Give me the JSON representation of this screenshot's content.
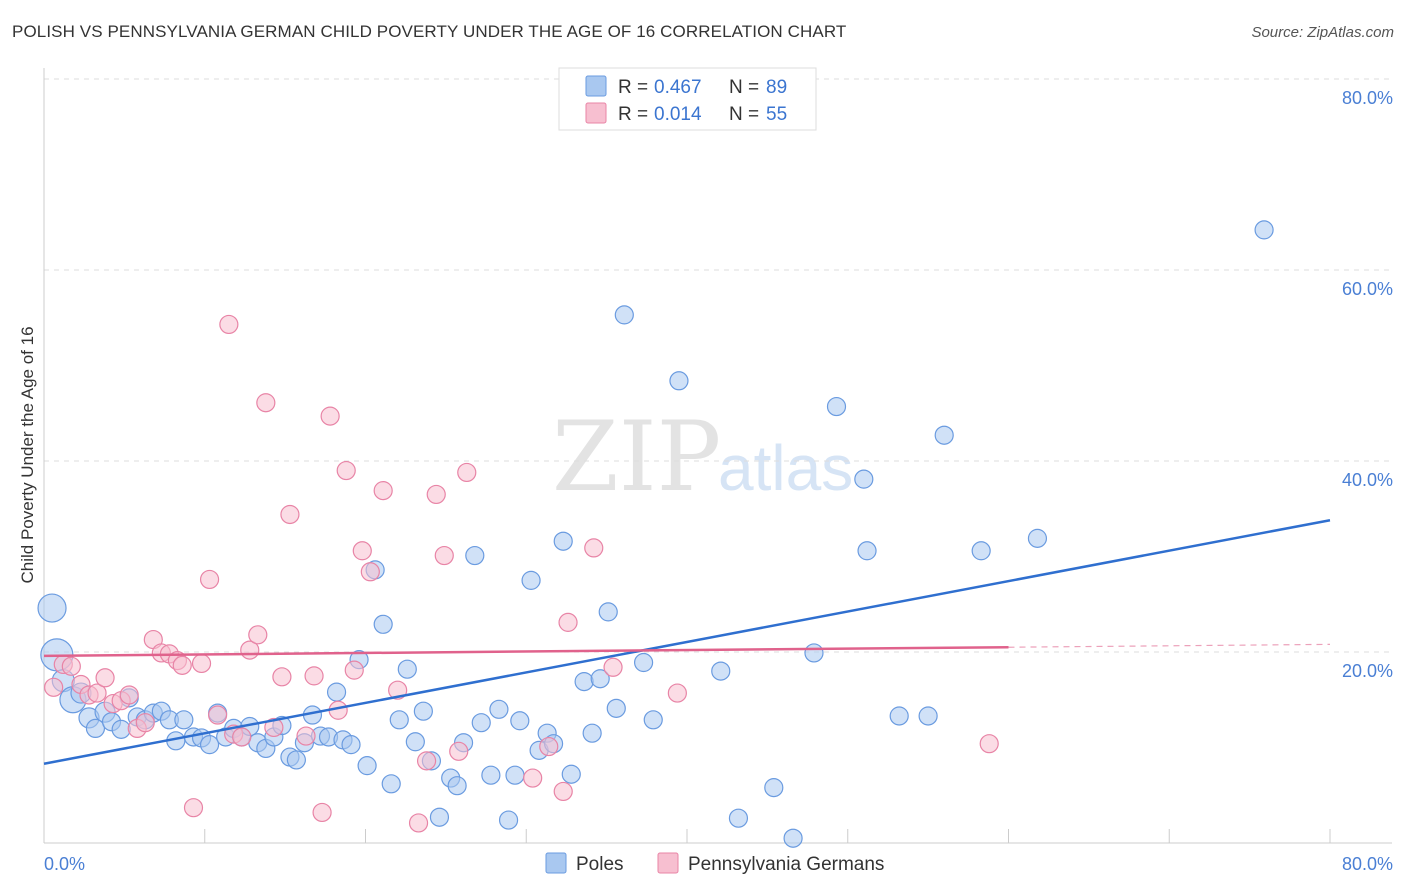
{
  "title": "POLISH VS PENNSYLVANIA GERMAN CHILD POVERTY UNDER THE AGE OF 16 CORRELATION CHART",
  "source": "Source: ZipAtlas.com",
  "watermark": {
    "zip": "ZIP",
    "atlas": "atlas"
  },
  "legend": {
    "items": [
      {
        "r_label": "R =",
        "r_value": "0.467",
        "n_label": "N =",
        "n_value": "89",
        "color": "#a9c8f0",
        "stroke": "#6a9be0"
      },
      {
        "r_label": "R =",
        "r_value": "0.014",
        "n_label": "N =",
        "n_value": "55",
        "color": "#f7bfd0",
        "stroke": "#e884a6"
      }
    ]
  },
  "bottom_legend": [
    "Poles",
    "Pennsylvania Germans"
  ],
  "chart_data": {
    "type": "scatter",
    "ylabel": "Child Poverty Under the Age of 16",
    "x_tick_labels": [
      "0.0%",
      "80.0%"
    ],
    "y_tick_labels": [
      "20.0%",
      "40.0%",
      "60.0%",
      "80.0%"
    ],
    "xlim": [
      0,
      80
    ],
    "ylim": [
      0,
      80
    ],
    "grid": true,
    "series": [
      {
        "name": "Poles",
        "color": "#a9c8f0",
        "stroke": "#6a9be0",
        "line_color": "#2f6fcf",
        "trend": {
          "x": [
            0,
            80
          ],
          "y": [
            8.3,
            33.8
          ]
        },
        "points": [
          [
            0.5,
            24.6,
            1.4
          ],
          [
            0.8,
            19.7,
            1.6
          ],
          [
            1.2,
            17.0,
            1.1
          ],
          [
            1.8,
            15.0,
            1.3
          ],
          [
            2.3,
            15.7,
            1.0
          ],
          [
            2.8,
            13.1,
            1.0
          ],
          [
            3.2,
            12.0,
            0.9
          ],
          [
            3.8,
            13.7,
            1.0
          ],
          [
            4.2,
            12.7,
            0.9
          ],
          [
            4.8,
            11.9,
            0.9
          ],
          [
            5.3,
            15.2,
            0.9
          ],
          [
            5.8,
            13.2,
            0.9
          ],
          [
            6.3,
            12.9,
            0.9
          ],
          [
            6.8,
            13.6,
            0.9
          ],
          [
            7.3,
            13.8,
            0.9
          ],
          [
            7.8,
            12.9,
            0.9
          ],
          [
            8.2,
            10.7,
            0.9
          ],
          [
            8.7,
            12.9,
            0.9
          ],
          [
            9.3,
            11.1,
            0.9
          ],
          [
            9.8,
            11.0,
            0.9
          ],
          [
            10.3,
            10.3,
            0.9
          ],
          [
            10.8,
            13.6,
            0.9
          ],
          [
            11.3,
            11.1,
            0.9
          ],
          [
            11.8,
            12.0,
            0.9
          ],
          [
            12.3,
            11.1,
            0.9
          ],
          [
            12.8,
            12.2,
            0.9
          ],
          [
            13.3,
            10.5,
            0.9
          ],
          [
            13.8,
            9.9,
            0.9
          ],
          [
            14.3,
            11.1,
            0.9
          ],
          [
            14.8,
            12.3,
            0.9
          ],
          [
            15.3,
            9.0,
            0.9
          ],
          [
            15.7,
            8.7,
            0.9
          ],
          [
            16.2,
            10.5,
            0.9
          ],
          [
            16.7,
            13.4,
            0.9
          ],
          [
            17.2,
            11.2,
            0.9
          ],
          [
            17.7,
            11.1,
            0.9
          ],
          [
            18.2,
            15.8,
            0.9
          ],
          [
            18.6,
            10.8,
            0.9
          ],
          [
            19.1,
            10.3,
            0.9
          ],
          [
            19.6,
            19.2,
            0.9
          ],
          [
            20.1,
            8.1,
            0.9
          ],
          [
            20.6,
            28.6,
            0.9
          ],
          [
            21.1,
            22.9,
            0.9
          ],
          [
            21.6,
            6.2,
            0.9
          ],
          [
            22.1,
            12.9,
            0.9
          ],
          [
            22.6,
            18.2,
            0.9
          ],
          [
            23.1,
            10.6,
            0.9
          ],
          [
            23.6,
            13.8,
            0.9
          ],
          [
            24.1,
            8.6,
            0.9
          ],
          [
            24.6,
            2.7,
            0.9
          ],
          [
            25.3,
            6.8,
            0.9
          ],
          [
            25.7,
            6.0,
            0.9
          ],
          [
            26.1,
            10.5,
            0.9
          ],
          [
            26.8,
            30.1,
            0.9
          ],
          [
            27.2,
            12.6,
            0.9
          ],
          [
            27.8,
            7.1,
            0.9
          ],
          [
            28.3,
            14.0,
            0.9
          ],
          [
            28.9,
            2.4,
            0.9
          ],
          [
            29.3,
            7.1,
            0.9
          ],
          [
            29.6,
            12.8,
            0.9
          ],
          [
            30.3,
            27.5,
            0.9
          ],
          [
            30.8,
            9.7,
            0.9
          ],
          [
            31.3,
            11.5,
            0.9
          ],
          [
            31.7,
            10.4,
            0.9
          ],
          [
            32.3,
            31.6,
            0.9
          ],
          [
            32.8,
            7.2,
            0.9
          ],
          [
            33.6,
            16.9,
            0.9
          ],
          [
            34.1,
            11.5,
            0.9
          ],
          [
            34.6,
            17.2,
            0.9
          ],
          [
            35.1,
            24.2,
            0.9
          ],
          [
            35.6,
            14.1,
            0.9
          ],
          [
            36.1,
            55.3,
            0.9
          ],
          [
            37.3,
            18.9,
            0.9
          ],
          [
            37.9,
            12.9,
            0.9
          ],
          [
            39.5,
            48.4,
            0.9
          ],
          [
            42.1,
            18.0,
            0.9
          ],
          [
            43.2,
            2.6,
            0.9
          ],
          [
            45.4,
            5.8,
            0.9
          ],
          [
            46.6,
            0.5,
            0.9
          ],
          [
            47.9,
            19.9,
            0.9
          ],
          [
            49.3,
            45.7,
            0.9
          ],
          [
            51.0,
            38.1,
            0.9
          ],
          [
            51.2,
            30.6,
            0.9
          ],
          [
            53.2,
            13.3,
            0.9
          ],
          [
            55.0,
            13.3,
            0.9
          ],
          [
            56.0,
            42.7,
            0.9
          ],
          [
            58.3,
            30.6,
            0.9
          ],
          [
            61.8,
            31.9,
            0.9
          ],
          [
            75.9,
            64.2,
            0.9
          ]
        ]
      },
      {
        "name": "Pennsylvania Germans",
        "color": "#f7bfd0",
        "stroke": "#e884a6",
        "line_color": "#e0628c",
        "trend": {
          "x": [
            0,
            60
          ],
          "y": [
            19.6,
            20.5
          ]
        },
        "trend_dash": {
          "x": [
            60,
            80
          ],
          "y": [
            20.5,
            20.8
          ]
        },
        "points": [
          [
            0.6,
            16.3,
            0.9
          ],
          [
            1.2,
            18.7,
            0.9
          ],
          [
            1.7,
            18.5,
            0.9
          ],
          [
            2.3,
            16.6,
            0.9
          ],
          [
            2.8,
            15.5,
            0.9
          ],
          [
            3.3,
            15.7,
            0.9
          ],
          [
            3.8,
            17.3,
            0.9
          ],
          [
            4.3,
            14.6,
            0.9
          ],
          [
            4.8,
            14.9,
            0.9
          ],
          [
            5.3,
            15.5,
            0.9
          ],
          [
            5.8,
            12.0,
            0.9
          ],
          [
            6.3,
            12.6,
            0.9
          ],
          [
            6.8,
            21.3,
            0.9
          ],
          [
            7.3,
            19.9,
            0.9
          ],
          [
            7.8,
            19.8,
            0.9
          ],
          [
            8.3,
            19.1,
            0.9
          ],
          [
            8.6,
            18.6,
            0.9
          ],
          [
            9.3,
            3.7,
            0.9
          ],
          [
            9.8,
            18.8,
            0.9
          ],
          [
            10.3,
            27.6,
            0.9
          ],
          [
            10.8,
            13.4,
            0.9
          ],
          [
            11.5,
            54.3,
            0.9
          ],
          [
            11.8,
            11.4,
            0.9
          ],
          [
            12.3,
            11.1,
            0.9
          ],
          [
            12.8,
            20.2,
            0.9
          ],
          [
            13.3,
            21.8,
            0.9
          ],
          [
            13.8,
            46.1,
            0.9
          ],
          [
            14.3,
            12.1,
            0.9
          ],
          [
            14.8,
            17.4,
            0.9
          ],
          [
            15.3,
            34.4,
            0.9
          ],
          [
            16.3,
            11.2,
            0.9
          ],
          [
            16.8,
            17.5,
            0.9
          ],
          [
            17.3,
            3.2,
            0.9
          ],
          [
            17.8,
            44.7,
            0.9
          ],
          [
            18.3,
            13.9,
            0.9
          ],
          [
            18.8,
            39.0,
            0.9
          ],
          [
            19.3,
            18.1,
            0.9
          ],
          [
            19.8,
            30.6,
            0.9
          ],
          [
            20.3,
            28.4,
            0.9
          ],
          [
            21.1,
            36.9,
            0.9
          ],
          [
            22.0,
            16.0,
            0.9
          ],
          [
            23.3,
            2.1,
            0.9
          ],
          [
            23.8,
            8.6,
            0.9
          ],
          [
            24.4,
            36.5,
            0.9
          ],
          [
            24.9,
            30.1,
            0.9
          ],
          [
            25.8,
            9.6,
            0.9
          ],
          [
            26.3,
            38.8,
            0.9
          ],
          [
            30.4,
            6.8,
            0.9
          ],
          [
            31.4,
            10.1,
            0.9
          ],
          [
            32.3,
            5.4,
            0.9
          ],
          [
            32.6,
            23.1,
            0.9
          ],
          [
            34.2,
            30.9,
            0.9
          ],
          [
            35.4,
            18.4,
            0.9
          ],
          [
            39.4,
            15.7,
            0.9
          ],
          [
            58.8,
            10.4,
            0.9
          ]
        ]
      }
    ]
  }
}
